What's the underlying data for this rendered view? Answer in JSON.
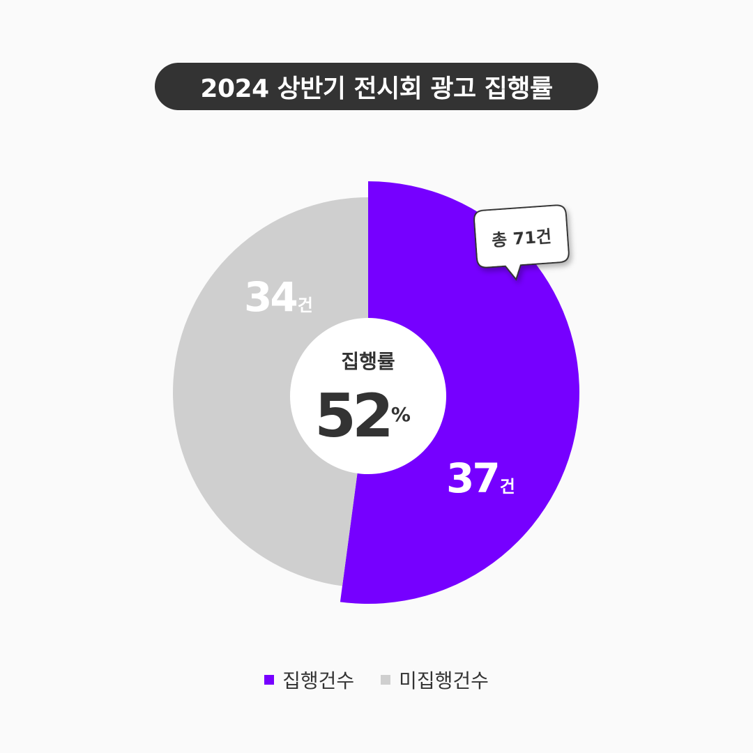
{
  "colors": {
    "executed": "#7600ff",
    "not_executed": "#cfcfcf",
    "title_bg": "#333333",
    "center_text": "#333333",
    "background": "#fafafa"
  },
  "chart_data": {
    "type": "pie",
    "title": "2024 상반기 전시회 광고 집행률",
    "slices": [
      {
        "label": "집행건수",
        "value": 37,
        "unit": "건",
        "color": "#7600ff"
      },
      {
        "label": "미집행건수",
        "value": 34,
        "unit": "건",
        "color": "#cfcfcf"
      }
    ],
    "total_label": "총 71건",
    "center_label": "집행률",
    "center_value": "52",
    "center_unit": "%",
    "legend_position": "bottom"
  }
}
